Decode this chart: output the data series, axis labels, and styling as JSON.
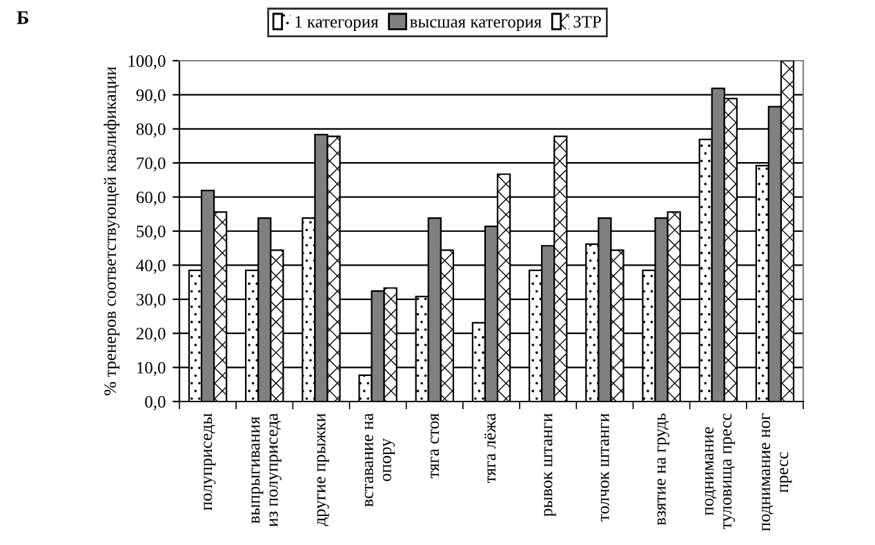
{
  "chart_data": {
    "type": "bar",
    "title": "Б",
    "ylabel": "% тренеров соответствующей квалификации",
    "categories": [
      "полуприседы",
      "выпрыгивания\nиз полуприседа",
      "другие прыжки",
      "вставание на\nопору",
      "тяга стоя",
      "тяга лёжа",
      "рывок штанги",
      "толчок штанги",
      "взятие на грудь",
      "поднимание\nтуловища пресс",
      "поднимание ног\nпресс"
    ],
    "series": [
      {
        "name": "1 категория",
        "color": "#ffffff",
        "values": [
          38.5,
          38.5,
          53.8,
          7.7,
          30.8,
          23.1,
          38.5,
          46.2,
          38.5,
          76.9,
          69.2
        ]
      },
      {
        "name": "высшая категория",
        "color": "#808080",
        "values": [
          61.9,
          53.8,
          78.3,
          32.4,
          53.8,
          51.4,
          45.7,
          53.8,
          53.8,
          91.9,
          86.5
        ]
      },
      {
        "name": "ЗТР",
        "color": "#ffffff",
        "values": [
          55.6,
          44.4,
          77.8,
          33.3,
          44.4,
          66.7,
          77.8,
          44.4,
          55.6,
          88.9,
          100.0
        ]
      }
    ],
    "ylim": [
      0,
      100
    ],
    "yticks": [
      {
        "value": 0,
        "label": "0,0"
      },
      {
        "value": 10,
        "label": "10,0"
      },
      {
        "value": 20,
        "label": "20,0"
      },
      {
        "value": 30,
        "label": "30,0"
      },
      {
        "value": 40,
        "label": "40,0"
      },
      {
        "value": 50,
        "label": "50,0"
      },
      {
        "value": 60,
        "label": "60,0"
      },
      {
        "value": 70,
        "label": "70,0"
      },
      {
        "value": 80,
        "label": "80,0"
      },
      {
        "value": 90,
        "label": "90,0"
      },
      {
        "value": 100,
        "label": "100,0"
      }
    ],
    "grid": "y",
    "legend": "top"
  }
}
